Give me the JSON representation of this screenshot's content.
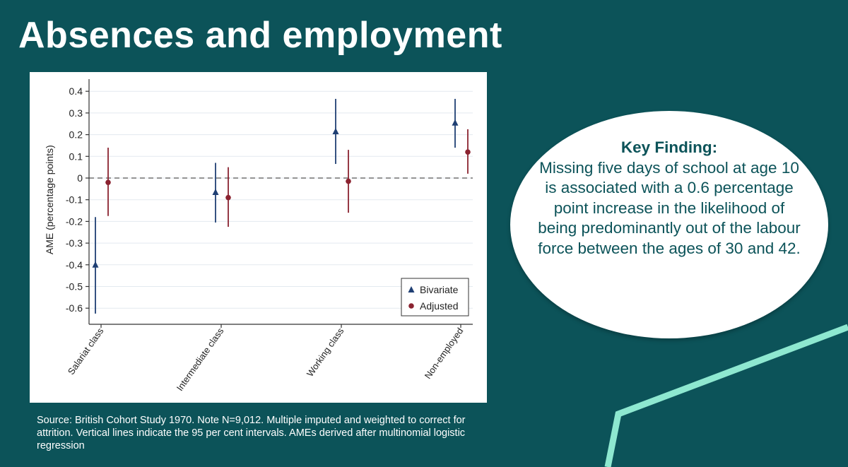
{
  "slide": {
    "title": "Absences and employment",
    "source_note": "Source: British Cohort Study 1970. Note N=9,012. Multiple imputed and weighted to correct for attrition. Vertical lines indicate the 95 per cent intervals. AMEs derived after multinomial logistic regression"
  },
  "key_finding": {
    "heading": "Key Finding:",
    "body": "Missing five days of school at age 10 is associated with a 0.6 percentage point increase in the likelihood of being predominantly out of the labour force between the ages of 30 and 42."
  },
  "colors": {
    "background": "#0c5359",
    "accent_line": "#8ee8d0",
    "bivariate": "#1f3f73",
    "adjusted": "#8b2330"
  },
  "chart_data": {
    "type": "scatter",
    "subtype": "point estimates with 95% confidence intervals",
    "ylabel": "AME (percentage points)",
    "xlabel": "",
    "ylim": [
      -0.65,
      0.42
    ],
    "yticks": [
      0.4,
      0.3,
      0.2,
      0.1,
      0,
      -0.1,
      -0.2,
      -0.3,
      -0.4,
      -0.5,
      -0.6
    ],
    "ytick_labels": [
      "0.4",
      "0.3",
      "0.2",
      "0.1",
      "0",
      "-0.1",
      "-0.2",
      "-0.3",
      "-0.4",
      "-0.5",
      "-0.6"
    ],
    "categories": [
      "Salariat class",
      "Intermediate class",
      "Working class",
      "Non-employed"
    ],
    "reference_line": 0,
    "grid": true,
    "legend_position": "bottom-right",
    "series": [
      {
        "name": "Bivariate",
        "marker": "triangle",
        "values": [
          -0.4,
          -0.065,
          0.215,
          0.255
        ],
        "ci_low": [
          -0.625,
          -0.205,
          0.065,
          0.14
        ],
        "ci_high": [
          -0.18,
          0.07,
          0.365,
          0.365
        ]
      },
      {
        "name": "Adjusted",
        "marker": "circle",
        "values": [
          -0.02,
          -0.09,
          -0.015,
          0.12
        ],
        "ci_low": [
          -0.175,
          -0.225,
          -0.16,
          0.02
        ],
        "ci_high": [
          0.14,
          0.05,
          0.13,
          0.225
        ]
      }
    ]
  }
}
